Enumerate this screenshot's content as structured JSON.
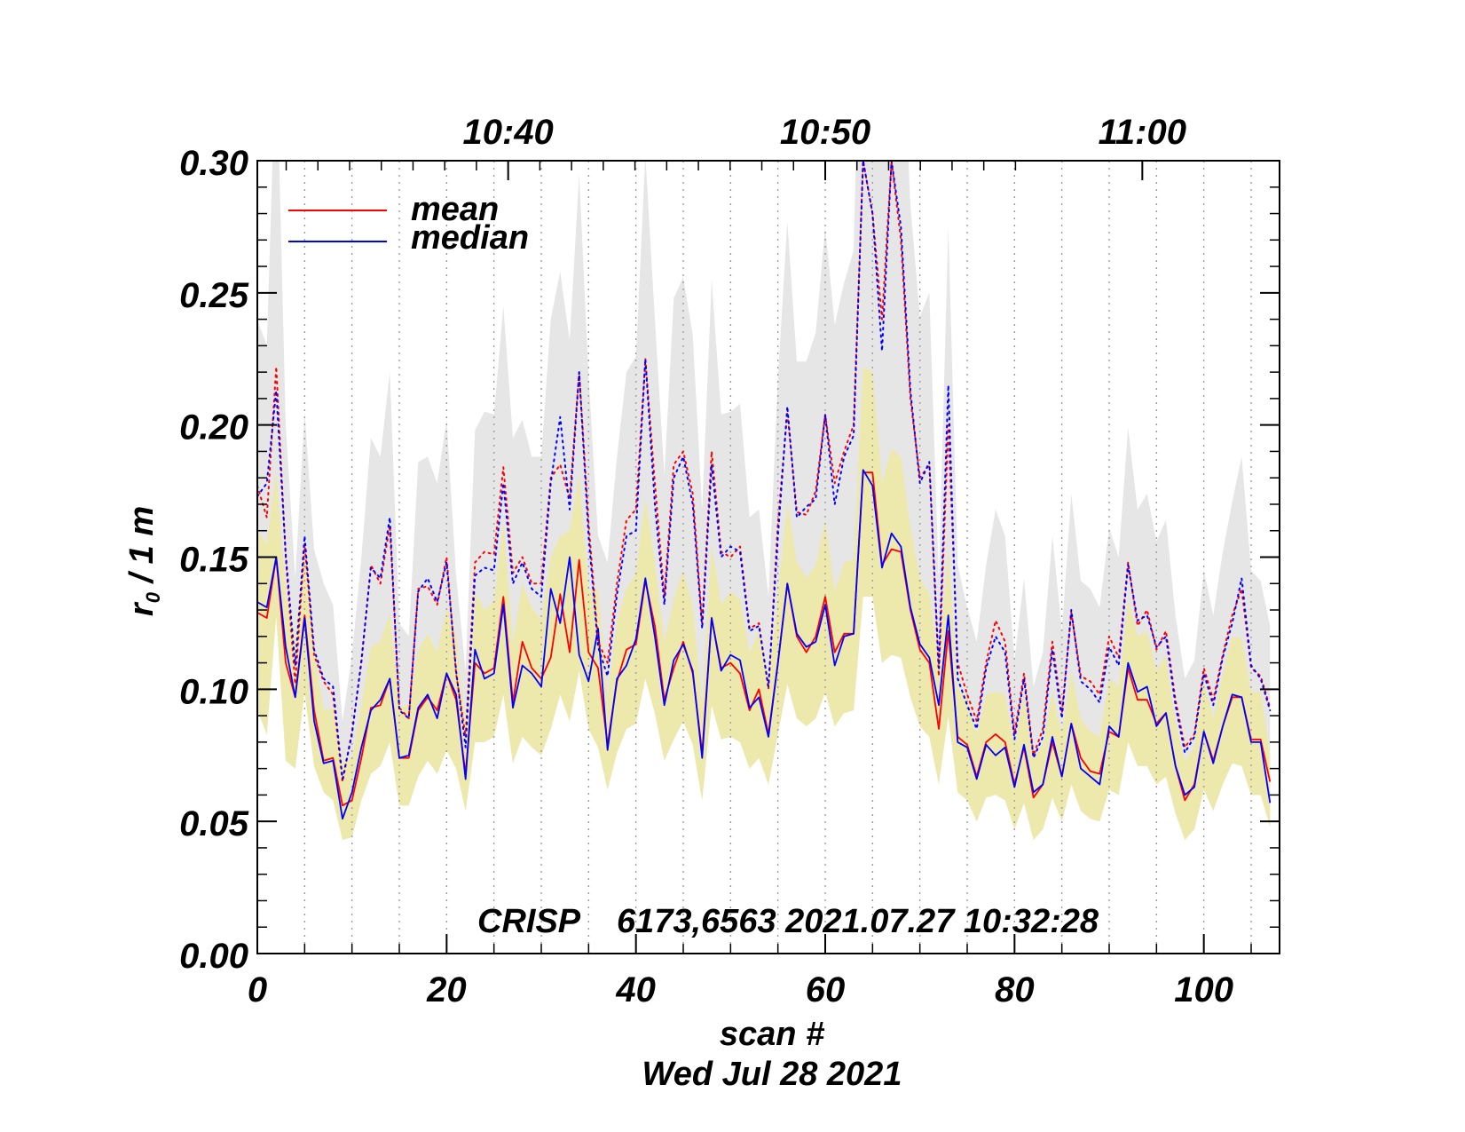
{
  "chart_data": {
    "type": "line",
    "title": "CRISP    6173,6563 2021.07.27 10:32:28",
    "xlabel": "scan #",
    "xlabel2": "Wed Jul 28 2021",
    "ylabel": "r₀ / 1 m",
    "ylabel_main": "r",
    "ylabel_sub": "0",
    "ylabel_rest": " / 1 m",
    "xlim": [
      0,
      108
    ],
    "ylim": [
      0.0,
      0.3
    ],
    "xticks": [
      0,
      20,
      40,
      60,
      80,
      100
    ],
    "xtick_labels": [
      "0",
      "20",
      "40",
      "60",
      "80",
      "100"
    ],
    "yticks": [
      0.0,
      0.05,
      0.1,
      0.15,
      0.2,
      0.25,
      0.3
    ],
    "ytick_labels": [
      "0.00",
      "0.05",
      "0.10",
      "0.15",
      "0.20",
      "0.25",
      "0.30"
    ],
    "top_axis": [
      {
        "scan": 26.5,
        "label": "10:40"
      },
      {
        "scan": 60.0,
        "label": "10:50"
      },
      {
        "scan": 93.5,
        "label": "11:00"
      }
    ],
    "scan_boundaries": [
      5,
      10,
      15,
      20,
      25,
      30,
      35,
      40,
      45,
      50,
      55,
      60,
      65,
      70,
      75,
      80,
      85,
      90,
      95,
      100,
      105
    ],
    "legend": [
      {
        "label": "mean",
        "color": "#ff0000"
      },
      {
        "label": "median",
        "color": "#0000ff"
      }
    ],
    "colors": {
      "mean": "#ff0000",
      "median": "#0000ff",
      "outer_band": "#e6e6e6",
      "inner_band": "#ede8ac",
      "boundary": "#a0a0a0"
    },
    "series": [
      {
        "name": "mean",
        "style": "solid",
        "values": [
          0.129,
          0.127,
          0.15,
          0.11,
          0.097,
          0.128,
          0.092,
          0.073,
          0.074,
          0.056,
          0.058,
          0.074,
          0.093,
          0.094,
          0.104,
          0.074,
          0.074,
          0.092,
          0.097,
          0.092,
          0.106,
          0.096,
          0.068,
          0.11,
          0.106,
          0.108,
          0.135,
          0.095,
          0.118,
          0.108,
          0.104,
          0.112,
          0.136,
          0.114,
          0.149,
          0.114,
          0.108,
          0.079,
          0.103,
          0.115,
          0.117,
          0.141,
          0.124,
          0.096,
          0.108,
          0.118,
          0.106,
          0.076,
          0.127,
          0.108,
          0.11,
          0.106,
          0.092,
          0.1,
          0.083,
          0.11,
          0.14,
          0.12,
          0.114,
          0.12,
          0.135,
          0.114,
          0.121,
          0.121,
          0.182,
          0.182,
          0.147,
          0.153,
          0.152,
          0.13,
          0.115,
          0.11,
          0.085,
          0.122,
          0.082,
          0.079,
          0.067,
          0.08,
          0.083,
          0.08,
          0.064,
          0.078,
          0.059,
          0.064,
          0.08,
          0.067,
          0.087,
          0.074,
          0.069,
          0.068,
          0.084,
          0.082,
          0.108,
          0.096,
          0.096,
          0.087,
          0.091,
          0.071,
          0.058,
          0.064,
          0.084,
          0.073,
          0.086,
          0.097,
          0.097,
          0.081,
          0.081,
          0.065
        ]
      },
      {
        "name": "median",
        "style": "solid",
        "values": [
          0.133,
          0.131,
          0.15,
          0.116,
          0.097,
          0.127,
          0.088,
          0.072,
          0.073,
          0.051,
          0.061,
          0.078,
          0.092,
          0.096,
          0.104,
          0.074,
          0.075,
          0.093,
          0.098,
          0.089,
          0.106,
          0.098,
          0.066,
          0.115,
          0.104,
          0.106,
          0.132,
          0.093,
          0.109,
          0.106,
          0.101,
          0.138,
          0.125,
          0.15,
          0.113,
          0.103,
          0.123,
          0.077,
          0.104,
          0.109,
          0.119,
          0.142,
          0.12,
          0.094,
          0.111,
          0.117,
          0.107,
          0.074,
          0.127,
          0.107,
          0.113,
          0.111,
          0.093,
          0.097,
          0.082,
          0.11,
          0.14,
          0.121,
          0.116,
          0.118,
          0.132,
          0.109,
          0.12,
          0.121,
          0.183,
          0.177,
          0.146,
          0.159,
          0.154,
          0.131,
          0.117,
          0.112,
          0.094,
          0.128,
          0.08,
          0.078,
          0.066,
          0.079,
          0.075,
          0.078,
          0.063,
          0.079,
          0.061,
          0.064,
          0.082,
          0.067,
          0.087,
          0.07,
          0.067,
          0.064,
          0.086,
          0.082,
          0.11,
          0.099,
          0.101,
          0.086,
          0.091,
          0.071,
          0.06,
          0.063,
          0.084,
          0.072,
          0.086,
          0.098,
          0.097,
          0.08,
          0.08,
          0.057
        ]
      },
      {
        "name": "mean (upper)",
        "style": "dotted",
        "values": [
          0.177,
          0.165,
          0.222,
          0.15,
          0.102,
          0.155,
          0.113,
          0.103,
          0.098,
          0.065,
          0.084,
          0.11,
          0.147,
          0.14,
          0.162,
          0.093,
          0.089,
          0.138,
          0.139,
          0.132,
          0.15,
          0.106,
          0.082,
          0.148,
          0.152,
          0.151,
          0.184,
          0.144,
          0.15,
          0.14,
          0.14,
          0.18,
          0.185,
          0.172,
          0.22,
          0.163,
          0.118,
          0.11,
          0.14,
          0.164,
          0.168,
          0.225,
          0.178,
          0.135,
          0.185,
          0.19,
          0.174,
          0.125,
          0.19,
          0.152,
          0.15,
          0.154,
          0.123,
          0.125,
          0.1,
          0.163,
          0.205,
          0.167,
          0.166,
          0.175,
          0.204,
          0.178,
          0.19,
          0.2,
          0.3,
          0.28,
          0.24,
          0.3,
          0.27,
          0.21,
          0.18,
          0.185,
          0.105,
          0.2,
          0.11,
          0.098,
          0.088,
          0.11,
          0.126,
          0.118,
          0.083,
          0.106,
          0.075,
          0.085,
          0.118,
          0.091,
          0.129,
          0.105,
          0.103,
          0.098,
          0.12,
          0.112,
          0.148,
          0.124,
          0.13,
          0.115,
          0.122,
          0.096,
          0.078,
          0.083,
          0.108,
          0.096,
          0.113,
          0.128,
          0.138,
          0.108,
          0.105,
          0.093
        ]
      },
      {
        "name": "median (upper)",
        "style": "dotted",
        "values": [
          0.173,
          0.178,
          0.213,
          0.151,
          0.109,
          0.158,
          0.115,
          0.104,
          0.101,
          0.066,
          0.083,
          0.111,
          0.146,
          0.142,
          0.165,
          0.092,
          0.089,
          0.137,
          0.142,
          0.133,
          0.148,
          0.107,
          0.078,
          0.143,
          0.146,
          0.145,
          0.178,
          0.14,
          0.148,
          0.138,
          0.135,
          0.178,
          0.203,
          0.168,
          0.22,
          0.158,
          0.116,
          0.105,
          0.136,
          0.158,
          0.16,
          0.225,
          0.17,
          0.132,
          0.18,
          0.188,
          0.17,
          0.123,
          0.185,
          0.15,
          0.154,
          0.152,
          0.122,
          0.124,
          0.101,
          0.158,
          0.207,
          0.165,
          0.169,
          0.172,
          0.204,
          0.17,
          0.188,
          0.196,
          0.3,
          0.28,
          0.228,
          0.3,
          0.275,
          0.213,
          0.178,
          0.186,
          0.108,
          0.215,
          0.104,
          0.094,
          0.085,
          0.108,
          0.12,
          0.114,
          0.081,
          0.104,
          0.074,
          0.082,
          0.115,
          0.089,
          0.13,
          0.103,
          0.1,
          0.095,
          0.116,
          0.109,
          0.147,
          0.126,
          0.128,
          0.116,
          0.12,
          0.094,
          0.076,
          0.082,
          0.106,
          0.094,
          0.112,
          0.125,
          0.142,
          0.109,
          0.104,
          0.092
        ]
      }
    ],
    "bands": [
      {
        "name": "outer range",
        "color": "#e6e6e6",
        "lower": [
          0.092,
          0.083,
          0.128,
          0.073,
          0.07,
          0.099,
          0.071,
          0.061,
          0.058,
          0.043,
          0.044,
          0.058,
          0.068,
          0.071,
          0.08,
          0.056,
          0.056,
          0.067,
          0.073,
          0.068,
          0.077,
          0.07,
          0.054,
          0.08,
          0.08,
          0.082,
          0.098,
          0.072,
          0.082,
          0.078,
          0.075,
          0.085,
          0.098,
          0.088,
          0.107,
          0.085,
          0.078,
          0.062,
          0.076,
          0.085,
          0.087,
          0.104,
          0.091,
          0.073,
          0.081,
          0.088,
          0.079,
          0.058,
          0.094,
          0.081,
          0.082,
          0.08,
          0.07,
          0.074,
          0.064,
          0.083,
          0.102,
          0.089,
          0.086,
          0.089,
          0.099,
          0.086,
          0.091,
          0.092,
          0.135,
          0.135,
          0.11,
          0.113,
          0.112,
          0.097,
          0.086,
          0.082,
          0.064,
          0.09,
          0.061,
          0.058,
          0.05,
          0.059,
          0.06,
          0.058,
          0.047,
          0.057,
          0.043,
          0.047,
          0.059,
          0.05,
          0.064,
          0.054,
          0.051,
          0.05,
          0.062,
          0.06,
          0.08,
          0.071,
          0.071,
          0.064,
          0.067,
          0.053,
          0.043,
          0.047,
          0.062,
          0.054,
          0.064,
          0.072,
          0.071,
          0.06,
          0.06,
          0.048
        ],
        "upper": [
          0.24,
          0.23,
          0.345,
          0.2,
          0.142,
          0.205,
          0.153,
          0.14,
          0.132,
          0.088,
          0.113,
          0.15,
          0.195,
          0.188,
          0.22,
          0.125,
          0.12,
          0.186,
          0.188,
          0.178,
          0.202,
          0.143,
          0.107,
          0.198,
          0.205,
          0.204,
          0.245,
          0.195,
          0.202,
          0.188,
          0.188,
          0.24,
          0.258,
          0.232,
          0.295,
          0.218,
          0.158,
          0.148,
          0.188,
          0.22,
          0.226,
          0.302,
          0.24,
          0.181,
          0.248,
          0.256,
          0.234,
          0.168,
          0.255,
          0.204,
          0.205,
          0.208,
          0.165,
          0.168,
          0.135,
          0.218,
          0.277,
          0.224,
          0.224,
          0.235,
          0.275,
          0.238,
          0.254,
          0.266,
          0.41,
          0.38,
          0.32,
          0.4,
          0.365,
          0.283,
          0.241,
          0.25,
          0.142,
          0.275,
          0.147,
          0.131,
          0.118,
          0.147,
          0.168,
          0.158,
          0.111,
          0.142,
          0.101,
          0.114,
          0.158,
          0.122,
          0.174,
          0.141,
          0.138,
          0.131,
          0.161,
          0.15,
          0.199,
          0.168,
          0.174,
          0.156,
          0.164,
          0.128,
          0.104,
          0.111,
          0.145,
          0.128,
          0.152,
          0.171,
          0.188,
          0.145,
          0.141,
          0.124
        ]
      },
      {
        "name": "inner range",
        "color": "#ede8ac",
        "lower": [
          0.092,
          0.083,
          0.128,
          0.073,
          0.07,
          0.099,
          0.071,
          0.061,
          0.058,
          0.043,
          0.044,
          0.058,
          0.068,
          0.071,
          0.08,
          0.056,
          0.056,
          0.067,
          0.073,
          0.068,
          0.077,
          0.07,
          0.054,
          0.08,
          0.08,
          0.082,
          0.098,
          0.072,
          0.082,
          0.078,
          0.075,
          0.085,
          0.098,
          0.088,
          0.107,
          0.085,
          0.078,
          0.062,
          0.076,
          0.085,
          0.087,
          0.104,
          0.091,
          0.073,
          0.081,
          0.088,
          0.079,
          0.058,
          0.094,
          0.081,
          0.082,
          0.08,
          0.07,
          0.074,
          0.064,
          0.083,
          0.102,
          0.089,
          0.086,
          0.089,
          0.099,
          0.086,
          0.091,
          0.092,
          0.135,
          0.135,
          0.11,
          0.113,
          0.112,
          0.097,
          0.086,
          0.082,
          0.064,
          0.09,
          0.061,
          0.058,
          0.05,
          0.059,
          0.06,
          0.058,
          0.047,
          0.057,
          0.043,
          0.047,
          0.059,
          0.05,
          0.064,
          0.054,
          0.051,
          0.05,
          0.062,
          0.06,
          0.08,
          0.071,
          0.071,
          0.064,
          0.067,
          0.053,
          0.043,
          0.047,
          0.062,
          0.054,
          0.064,
          0.072,
          0.071,
          0.06,
          0.06,
          0.048
        ],
        "upper": [
          0.16,
          0.155,
          0.183,
          0.136,
          0.12,
          0.156,
          0.114,
          0.092,
          0.093,
          0.072,
          0.074,
          0.094,
          0.116,
          0.118,
          0.129,
          0.093,
          0.094,
          0.115,
          0.121,
          0.114,
          0.131,
          0.12,
          0.086,
          0.137,
          0.13,
          0.133,
          0.164,
          0.117,
          0.14,
          0.131,
          0.126,
          0.15,
          0.158,
          0.16,
          0.181,
          0.137,
          0.138,
          0.097,
          0.126,
          0.138,
          0.144,
          0.172,
          0.148,
          0.118,
          0.134,
          0.145,
          0.131,
          0.094,
          0.155,
          0.132,
          0.137,
          0.134,
          0.114,
          0.122,
          0.103,
          0.135,
          0.171,
          0.148,
          0.142,
          0.147,
          0.164,
          0.137,
          0.148,
          0.149,
          0.222,
          0.22,
          0.178,
          0.191,
          0.188,
          0.161,
          0.142,
          0.136,
          0.109,
          0.153,
          0.1,
          0.097,
          0.083,
          0.098,
          0.099,
          0.098,
          0.079,
          0.098,
          0.074,
          0.079,
          0.099,
          0.083,
          0.107,
          0.089,
          0.084,
          0.082,
          0.104,
          0.101,
          0.134,
          0.12,
          0.122,
          0.107,
          0.113,
          0.088,
          0.073,
          0.078,
          0.104,
          0.089,
          0.106,
          0.12,
          0.119,
          0.099,
          0.099,
          0.076
        ]
      }
    ]
  }
}
